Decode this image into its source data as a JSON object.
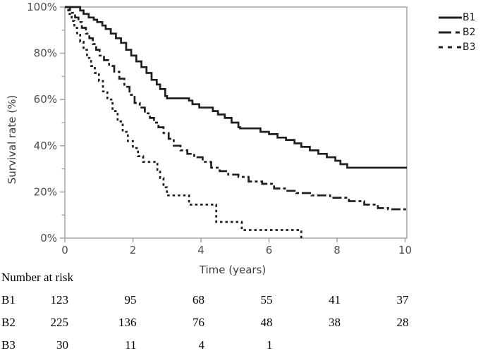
{
  "chart_data": {
    "type": "line",
    "subtype": "kaplan-meier-step-survival",
    "title": "",
    "xlabel": "Time (years)",
    "ylabel": "Survival rate (%)",
    "xlim": [
      0,
      10
    ],
    "ylim": [
      0,
      100
    ],
    "grid": false,
    "legend_position": "top-right-outside",
    "x_ticks": [
      0,
      2,
      4,
      6,
      8,
      10
    ],
    "x_tick_labels": [
      "0",
      "2",
      "4",
      "6",
      "8",
      "10"
    ],
    "y_ticks": [
      0,
      20,
      40,
      60,
      80,
      100
    ],
    "y_tick_labels": [
      "0%",
      "20%",
      "40%",
      "60%",
      "80%",
      "100%"
    ],
    "y_minor_ticks": [
      10,
      30,
      50,
      70,
      90
    ],
    "series": [
      {
        "name": "B1",
        "line_style": "solid",
        "color": "#1f1f1f",
        "extend_to_right": true,
        "steps": [
          [
            0,
            100
          ],
          [
            0.35,
            100
          ],
          [
            0.45,
            98.5
          ],
          [
            0.55,
            97
          ],
          [
            0.7,
            95.5
          ],
          [
            0.85,
            94.5
          ],
          [
            0.95,
            93.5
          ],
          [
            1.1,
            92
          ],
          [
            1.2,
            90.5
          ],
          [
            1.35,
            88.5
          ],
          [
            1.5,
            86.5
          ],
          [
            1.65,
            84.5
          ],
          [
            1.8,
            81.5
          ],
          [
            1.95,
            79
          ],
          [
            2.1,
            76.5
          ],
          [
            2.25,
            74
          ],
          [
            2.4,
            71.5
          ],
          [
            2.55,
            68.5
          ],
          [
            2.7,
            66.5
          ],
          [
            2.8,
            64.5
          ],
          [
            2.95,
            61.5
          ],
          [
            3.0,
            60.5
          ],
          [
            3.55,
            60.5
          ],
          [
            3.65,
            59.5
          ],
          [
            3.75,
            58
          ],
          [
            3.95,
            56.5
          ],
          [
            4.35,
            55
          ],
          [
            4.5,
            53.5
          ],
          [
            4.7,
            52
          ],
          [
            4.9,
            50
          ],
          [
            5.1,
            48
          ],
          [
            5.15,
            47.5
          ],
          [
            5.65,
            47.5
          ],
          [
            5.75,
            46
          ],
          [
            6.0,
            45
          ],
          [
            6.25,
            43.5
          ],
          [
            6.5,
            42.5
          ],
          [
            6.75,
            41
          ],
          [
            6.95,
            39.5
          ],
          [
            7.2,
            38
          ],
          [
            7.45,
            36.5
          ],
          [
            7.7,
            35
          ],
          [
            7.95,
            33.5
          ],
          [
            8.1,
            32
          ],
          [
            8.3,
            30.5
          ],
          [
            10,
            30.5
          ]
        ]
      },
      {
        "name": "B2",
        "line_style": "dash-dot",
        "color": "#1f1f1f",
        "extend_to_right": true,
        "steps": [
          [
            0,
            100
          ],
          [
            0.15,
            97.5
          ],
          [
            0.3,
            95.5
          ],
          [
            0.4,
            93.5
          ],
          [
            0.5,
            91
          ],
          [
            0.62,
            88.5
          ],
          [
            0.72,
            86.5
          ],
          [
            0.82,
            84
          ],
          [
            0.92,
            81.5
          ],
          [
            1.02,
            79
          ],
          [
            1.15,
            77
          ],
          [
            1.3,
            74.5
          ],
          [
            1.45,
            72
          ],
          [
            1.6,
            69
          ],
          [
            1.75,
            65.5
          ],
          [
            1.9,
            62
          ],
          [
            2.05,
            58.5
          ],
          [
            2.2,
            56.5
          ],
          [
            2.35,
            54
          ],
          [
            2.5,
            52
          ],
          [
            2.62,
            50
          ],
          [
            2.75,
            48
          ],
          [
            2.9,
            45.5
          ],
          [
            3.05,
            43
          ],
          [
            3.2,
            40
          ],
          [
            3.4,
            38
          ],
          [
            3.6,
            36.5
          ],
          [
            3.8,
            35
          ],
          [
            4.05,
            33
          ],
          [
            4.3,
            30.5
          ],
          [
            4.55,
            29
          ],
          [
            4.8,
            27.5
          ],
          [
            5.1,
            26.5
          ],
          [
            5.4,
            24.5
          ],
          [
            5.8,
            23.5
          ],
          [
            6.15,
            21.5
          ],
          [
            6.5,
            20.5
          ],
          [
            6.8,
            19.5
          ],
          [
            7.25,
            18.5
          ],
          [
            7.8,
            17.5
          ],
          [
            8.35,
            16
          ],
          [
            8.8,
            14.5
          ],
          [
            9.2,
            13
          ],
          [
            9.5,
            12.5
          ],
          [
            10,
            12
          ]
        ]
      },
      {
        "name": "B3",
        "line_style": "dotted",
        "color": "#1f1f1f",
        "extend_to_right": false,
        "steps": [
          [
            0,
            100
          ],
          [
            0.1,
            97
          ],
          [
            0.2,
            94
          ],
          [
            0.28,
            91
          ],
          [
            0.36,
            88
          ],
          [
            0.45,
            85
          ],
          [
            0.55,
            81.5
          ],
          [
            0.65,
            78
          ],
          [
            0.77,
            74.5
          ],
          [
            0.88,
            71.5
          ],
          [
            1.0,
            68
          ],
          [
            1.12,
            63.5
          ],
          [
            1.25,
            60
          ],
          [
            1.4,
            55
          ],
          [
            1.55,
            50.5
          ],
          [
            1.7,
            46
          ],
          [
            1.85,
            42
          ],
          [
            2.0,
            39
          ],
          [
            2.15,
            35.5
          ],
          [
            2.3,
            33
          ],
          [
            2.65,
            33
          ],
          [
            2.72,
            29.5
          ],
          [
            2.8,
            26
          ],
          [
            2.9,
            22
          ],
          [
            3.0,
            18.5
          ],
          [
            3.6,
            18.5
          ],
          [
            3.65,
            14.5
          ],
          [
            4.4,
            14.5
          ],
          [
            4.45,
            7
          ],
          [
            5.15,
            7
          ],
          [
            5.2,
            3.5
          ],
          [
            6.9,
            3.5
          ],
          [
            6.95,
            0
          ]
        ]
      }
    ],
    "number_at_risk": {
      "title": "Number at risk",
      "times": [
        0,
        2,
        4,
        6,
        8,
        10
      ],
      "rows": [
        {
          "name": "B1",
          "counts": [
            "123",
            "95",
            "68",
            "55",
            "41",
            "37"
          ]
        },
        {
          "name": "B2",
          "counts": [
            "225",
            "136",
            "76",
            "48",
            "38",
            "28"
          ]
        },
        {
          "name": "B3",
          "counts": [
            "30",
            "11",
            "4",
            "1",
            "",
            ""
          ]
        }
      ]
    },
    "colors": {
      "curve": "#1f1f1f",
      "axis_frame": "#a9a9a9",
      "tick_text": "#4d4d4d",
      "table_text": "#000000"
    }
  }
}
